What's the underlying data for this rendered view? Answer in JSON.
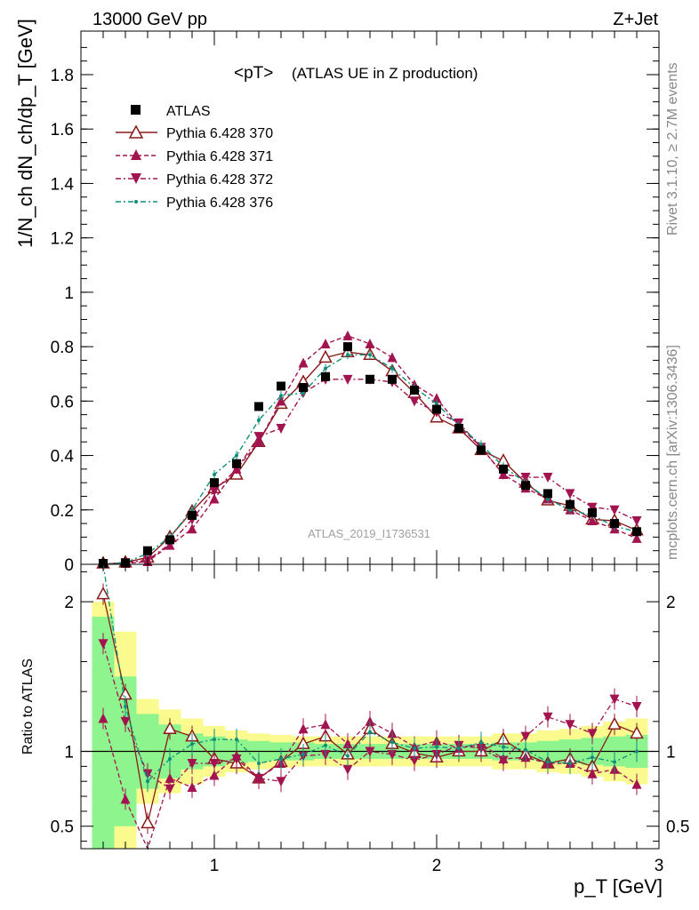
{
  "header": {
    "left": "13000 GeV pp",
    "right": "Z+Jet"
  },
  "side_labels": {
    "rivet": "Rivet 3.1.10, ≥ 2.7M events",
    "mcplots": "mcplots.cern.ch [arXiv:1306.3436]"
  },
  "watermark": "ATLAS_2019_I1736531",
  "main_title": "<pT>",
  "main_subtitle": "(ATLAS UE in Z production)",
  "ylabel_main": "1/N_ch dN_ch/dp_T [GeV]",
  "ylabel_ratio": "Ratio to ATLAS",
  "xlabel": "p_T [GeV]",
  "colors": {
    "data": "#000000",
    "p370": "#8b1a1a",
    "p371": "#a3134f",
    "p372": "#a3134f",
    "p376": "#0f8f7a",
    "band_inner": "#8ef58e",
    "band_outer": "#fafa8e"
  },
  "chart_data": [
    {
      "type": "line",
      "panel": "main",
      "x": [
        0.5,
        0.6,
        0.7,
        0.8,
        0.9,
        1.0,
        1.1,
        1.2,
        1.3,
        1.4,
        1.5,
        1.6,
        1.7,
        1.8,
        1.9,
        2.0,
        2.1,
        2.2,
        2.3,
        2.4,
        2.5,
        2.6,
        2.7,
        2.8,
        2.9
      ],
      "xlim": [
        0.4,
        3.0
      ],
      "ylim": [
        0,
        1.96
      ],
      "yticks": [
        0,
        0.2,
        0.4,
        0.6,
        0.8,
        1,
        1.2,
        1.4,
        1.6,
        1.8
      ],
      "series": [
        {
          "name": "ATLAS",
          "marker": "square",
          "values": [
            0.0,
            0.005,
            0.05,
            0.09,
            0.18,
            0.3,
            0.37,
            0.58,
            0.655,
            0.65,
            0.69,
            0.8,
            0.68,
            0.68,
            0.64,
            0.57,
            0.5,
            0.42,
            0.35,
            0.29,
            0.26,
            0.22,
            0.19,
            0.15,
            0.12
          ]
        },
        {
          "name": "Pythia 6.428 370",
          "marker": "open-triangle-up",
          "line": "solid",
          "values": [
            0.0,
            0.007,
            0.025,
            0.1,
            0.195,
            0.28,
            0.33,
            0.45,
            0.59,
            0.67,
            0.76,
            0.78,
            0.77,
            0.71,
            0.63,
            0.54,
            0.5,
            0.42,
            0.38,
            0.3,
            0.235,
            0.215,
            0.165,
            0.16,
            0.125
          ]
        },
        {
          "name": "Pythia 6.428 371",
          "marker": "triangle-up",
          "line": "dashed",
          "values": [
            0.0,
            0.003,
            0.01,
            0.07,
            0.13,
            0.24,
            0.35,
            0.45,
            0.6,
            0.74,
            0.81,
            0.84,
            0.81,
            0.76,
            0.66,
            0.61,
            0.51,
            0.43,
            0.33,
            0.28,
            0.24,
            0.2,
            0.16,
            0.13,
            0.095
          ]
        },
        {
          "name": "Pythia 6.428 372",
          "marker": "triangle-down",
          "line": "dashdot",
          "values": [
            0.0,
            0.006,
            0.015,
            0.075,
            0.165,
            0.27,
            0.35,
            0.47,
            0.5,
            0.63,
            0.68,
            0.68,
            0.68,
            0.67,
            0.6,
            0.56,
            0.52,
            0.43,
            0.33,
            0.32,
            0.32,
            0.26,
            0.21,
            0.2,
            0.16
          ]
        },
        {
          "name": "Pythia 6.428 376",
          "marker": "dot",
          "line": "dashdot",
          "values": [
            0.0,
            0.006,
            0.04,
            0.1,
            0.2,
            0.33,
            0.4,
            0.53,
            0.62,
            0.63,
            0.72,
            0.77,
            0.77,
            0.72,
            0.65,
            0.59,
            0.51,
            0.44,
            0.36,
            0.3,
            0.24,
            0.2,
            0.18,
            0.14,
            0.12
          ]
        }
      ]
    },
    {
      "type": "line",
      "panel": "ratio",
      "x": [
        0.5,
        0.6,
        0.7,
        0.8,
        0.9,
        1.0,
        1.1,
        1.2,
        1.3,
        1.4,
        1.5,
        1.6,
        1.7,
        1.8,
        1.9,
        2.0,
        2.1,
        2.2,
        2.3,
        2.4,
        2.5,
        2.6,
        2.7,
        2.8,
        2.9
      ],
      "xlim": [
        0.4,
        3.0
      ],
      "ylim": [
        0.35,
        2.25
      ],
      "yticks": [
        0.5,
        1,
        2
      ],
      "xticks": [
        1,
        2,
        3
      ],
      "bands": {
        "edges": [
          0.45,
          0.55,
          0.65,
          0.75,
          0.85,
          0.95,
          1.05,
          1.15,
          1.25,
          1.35,
          1.45,
          1.55,
          1.65,
          1.75,
          1.85,
          1.95,
          2.05,
          2.15,
          2.25,
          2.35,
          2.45,
          2.55,
          2.65,
          2.75,
          2.85,
          2.95
        ],
        "inner": [
          0.9,
          0.5,
          0.25,
          0.18,
          0.12,
          0.1,
          0.08,
          0.07,
          0.06,
          0.06,
          0.05,
          0.05,
          0.05,
          0.05,
          0.05,
          0.05,
          0.05,
          0.05,
          0.06,
          0.06,
          0.07,
          0.08,
          0.09,
          0.1,
          0.11
        ],
        "outer": [
          1.0,
          0.8,
          0.35,
          0.28,
          0.22,
          0.17,
          0.14,
          0.12,
          0.11,
          0.1,
          0.1,
          0.1,
          0.1,
          0.1,
          0.1,
          0.1,
          0.1,
          0.1,
          0.12,
          0.12,
          0.14,
          0.15,
          0.17,
          0.2,
          0.22
        ]
      },
      "series": [
        {
          "name": "Pythia 6.428 370",
          "values": [
            2.05,
            1.38,
            0.52,
            1.15,
            1.1,
            0.95,
            0.92,
            0.82,
            0.93,
            1.05,
            1.1,
            0.98,
            1.15,
            1.05,
            0.99,
            0.96,
            1.0,
            1.0,
            1.08,
            0.98,
            0.92,
            0.95,
            0.9,
            1.18,
            1.12
          ]
        },
        {
          "name": "Pythia 6.428 371",
          "values": [
            1.22,
            0.68,
            0.22,
            0.82,
            0.76,
            0.84,
            0.97,
            0.82,
            0.92,
            1.15,
            1.18,
            1.05,
            1.2,
            1.12,
            1.03,
            1.07,
            1.02,
            1.05,
            0.95,
            0.96,
            0.92,
            0.92,
            0.85,
            0.88,
            0.78
          ]
        },
        {
          "name": "Pythia 6.428 372",
          "values": [
            1.72,
            1.2,
            0.85,
            0.75,
            0.92,
            0.92,
            0.95,
            0.82,
            0.8,
            0.97,
            0.98,
            0.88,
            1.0,
            0.98,
            0.94,
            0.98,
            1.04,
            1.02,
            0.94,
            1.1,
            1.23,
            1.18,
            1.12,
            1.35,
            1.3
          ]
        },
        {
          "name": "Pythia 6.428 376",
          "values": [
            2.5,
            1.3,
            0.8,
            0.95,
            1.05,
            1.08,
            1.08,
            0.92,
            0.95,
            0.98,
            1.04,
            0.97,
            1.13,
            1.06,
            1.02,
            1.03,
            1.02,
            1.06,
            1.03,
            1.01,
            0.93,
            0.92,
            0.96,
            0.93,
            1.0
          ]
        }
      ]
    }
  ]
}
